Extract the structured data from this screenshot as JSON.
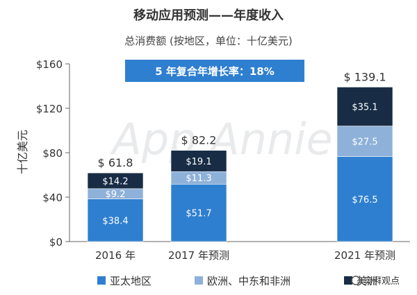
{
  "chart_data": {
    "type": "bar",
    "stacked": true,
    "title": "移动应用预测——年度收入",
    "subtitle": "总消费额 (按地区，单位：十亿美元)",
    "ylabel": "十亿美元",
    "categories": [
      "2016 年",
      "2017 年预测",
      "2021 年预测"
    ],
    "series": [
      {
        "name": "亚太地区",
        "color": "#2f7fd0",
        "values": [
          38.4,
          51.7,
          76.5
        ],
        "labels": [
          "$38.4",
          "$51.7",
          "$76.5"
        ]
      },
      {
        "name": "欧洲、中东和非洲",
        "color": "#8eb1d9",
        "values": [
          9.2,
          11.3,
          27.5
        ],
        "labels": [
          "$9.2",
          "$11.3",
          "$27.5"
        ]
      },
      {
        "name": "美洲",
        "color": "#182c45",
        "values": [
          14.2,
          19.1,
          35.1
        ],
        "labels": [
          "$14.2",
          "$19.1",
          "$35.1"
        ]
      }
    ],
    "totals": [
      "$ 61.8",
      "$ 82.2",
      "$ 139.1"
    ],
    "ylim": [
      0,
      160
    ],
    "yticks": [
      0,
      40,
      80,
      120,
      160
    ],
    "ytick_labels": [
      "$0",
      "$40",
      "$80",
      "$120",
      "$160"
    ],
    "annotation": "5 年复合年增长率：18%",
    "watermark": "App Annie",
    "legend_position": "bottom"
  },
  "source_mark": "奕湃观点"
}
